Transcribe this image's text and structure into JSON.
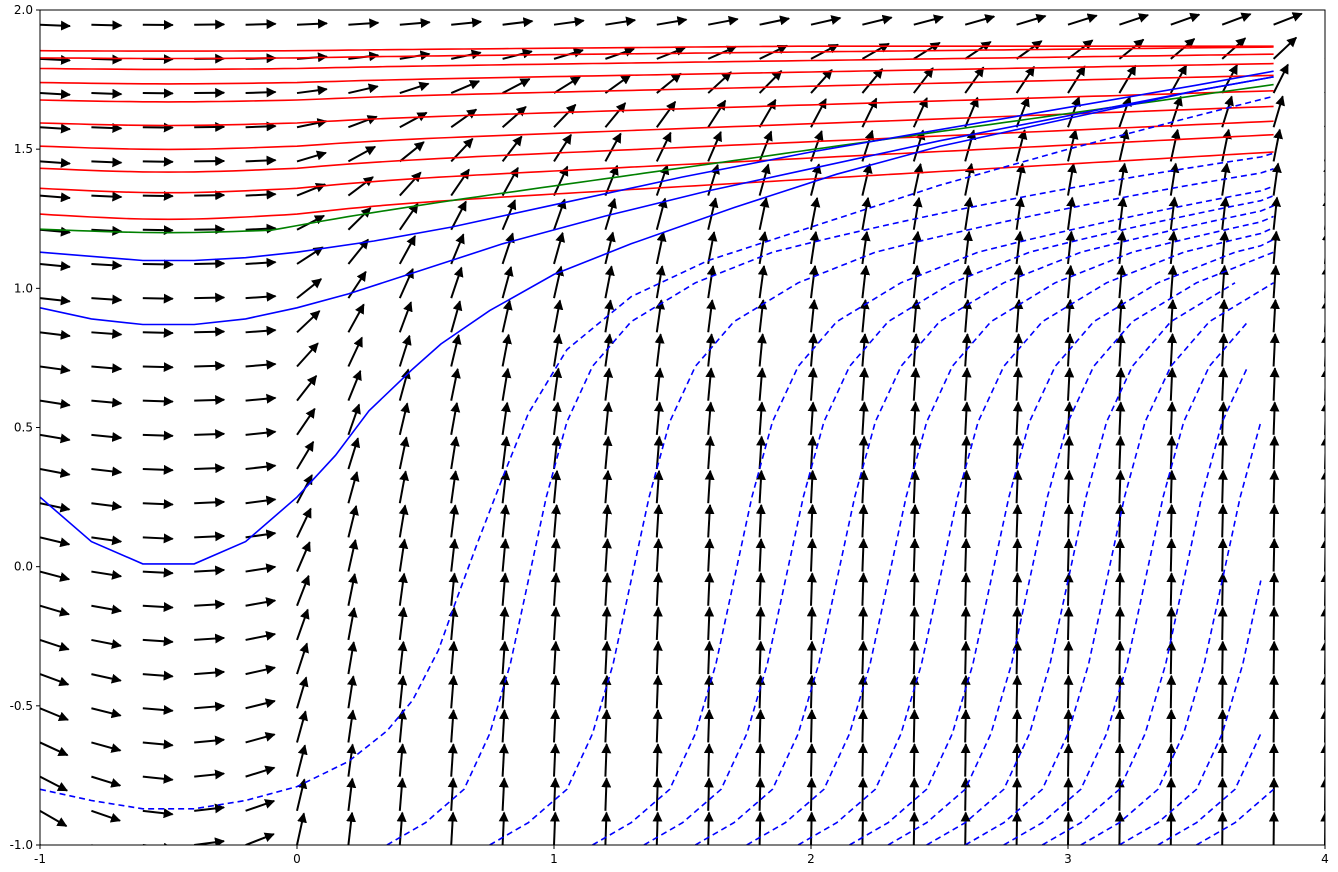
{
  "chart_data": {
    "type": "quiver-streamlines",
    "title": "",
    "xlabel": "",
    "ylabel": "",
    "xlim": [
      -1,
      4
    ],
    "ylim": [
      -1,
      2
    ],
    "grid": false,
    "legend": "none",
    "x_ticks": [
      -1,
      0,
      1,
      2,
      3,
      4
    ],
    "x_tick_labels": [
      "-1",
      "0",
      "1",
      "2",
      "3",
      "4"
    ],
    "y_ticks": [
      -1.0,
      -0.5,
      0.0,
      0.5,
      1.0,
      1.5,
      2.0
    ],
    "y_tick_labels": [
      "-1.0",
      "-0.5",
      "0.0",
      "0.5",
      "1.0",
      "1.5",
      "2.0"
    ],
    "vector_field": {
      "x_start": -1.0,
      "x_step": 0.2,
      "x_count": 26,
      "y_start": -1.0,
      "y_step": 0.1228,
      "y_count": 25,
      "color": "#000000",
      "note_direction": "flow always rightward; steep upward for x>0.5 near y in [-1,1], flattening toward y=2"
    },
    "solution_curves": {
      "x_range": [
        -1,
        3.8
      ],
      "red_y_at_x0": [
        1.285,
        1.375,
        1.445,
        1.522,
        1.603,
        1.683,
        1.744,
        1.793,
        1.83,
        1.855
      ],
      "green_y_at_x0": [
        1.225
      ],
      "blue_solid_y_at_x0": [
        1.135,
        0.925,
        0.252
      ],
      "blue_dashed_y_at_x0": [
        -0.8
      ],
      "blue_dashed_shifts": [
        0,
        0.6,
        1.0,
        1.4,
        1.6,
        1.8,
        2.0,
        2.2,
        2.4,
        2.55,
        2.7,
        2.85,
        3.0,
        3.15,
        3.3,
        3.45,
        3.6,
        3.75
      ],
      "colors": {
        "red": "#ff0000",
        "green": "#008000",
        "blue": "#0000ff"
      }
    }
  }
}
